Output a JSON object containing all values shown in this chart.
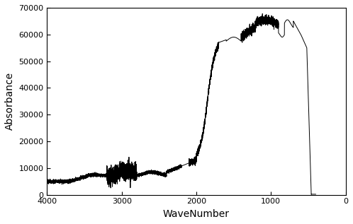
{
  "title": "",
  "xlabel": "WaveNumber",
  "ylabel": "Absorbance",
  "xlim": [
    4000,
    0
  ],
  "ylim": [
    0,
    70000
  ],
  "xticks": [
    4000,
    3000,
    2000,
    1000,
    0
  ],
  "yticks": [
    0,
    10000,
    20000,
    30000,
    40000,
    50000,
    60000,
    70000
  ],
  "ytick_labels": [
    "0",
    "10000",
    "20000",
    "30000",
    "40000",
    "50000",
    "60000",
    "70000"
  ],
  "line_color": "#000000",
  "background_color": "#ffffff",
  "linewidth": 0.7
}
